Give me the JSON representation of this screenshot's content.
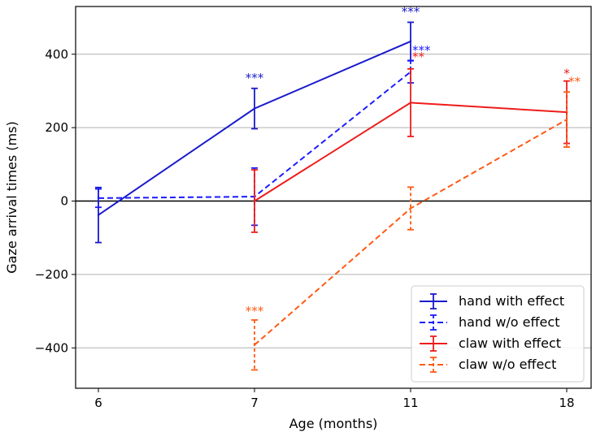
{
  "chart_data": {
    "type": "line",
    "title": "",
    "xlabel": "Age (months)",
    "ylabel": "Gaze arrival times (ms)",
    "categories": [
      "6",
      "7",
      "11",
      "18"
    ],
    "ylim": [
      -510,
      530
    ],
    "yticks": [
      -400,
      -200,
      0,
      200,
      400
    ],
    "grid": "horizontal",
    "zero_line": true,
    "legend_position": "lower-right",
    "series": [
      {
        "name": "hand with effect",
        "color": "#1a1acc",
        "dashed": false,
        "points": [
          {
            "x": "6",
            "y": -38,
            "err": 75
          },
          {
            "x": "7",
            "y": 252,
            "err": 55,
            "annotation": "***"
          },
          {
            "x": "11",
            "y": 435,
            "err": 52,
            "annotation": "***"
          }
        ]
      },
      {
        "name": "hand w/o effect",
        "color": "#1a1aff",
        "dashed": true,
        "points": [
          {
            "x": "6",
            "y": 8,
            "err": 25
          },
          {
            "x": "7",
            "y": 12,
            "err": 78
          },
          {
            "x": "11",
            "y": 352,
            "err": 30,
            "annotation": "***"
          }
        ]
      },
      {
        "name": "claw with effect",
        "color": "#ee1c1c",
        "dashed": false,
        "points": [
          {
            "x": "7",
            "y": 0,
            "err": 85
          },
          {
            "x": "11",
            "y": 268,
            "err": 92,
            "annotation": "**"
          },
          {
            "x": "18",
            "y": 242,
            "err": 85,
            "annotation": "*"
          }
        ]
      },
      {
        "name": "claw w/o effect",
        "color": "#ff5a14",
        "dashed": true,
        "points": [
          {
            "x": "7",
            "y": -392,
            "err": 68,
            "annotation": "***"
          },
          {
            "x": "11",
            "y": -20,
            "err": 58
          },
          {
            "x": "18",
            "y": 222,
            "err": 75,
            "annotation": "**"
          }
        ]
      }
    ]
  }
}
